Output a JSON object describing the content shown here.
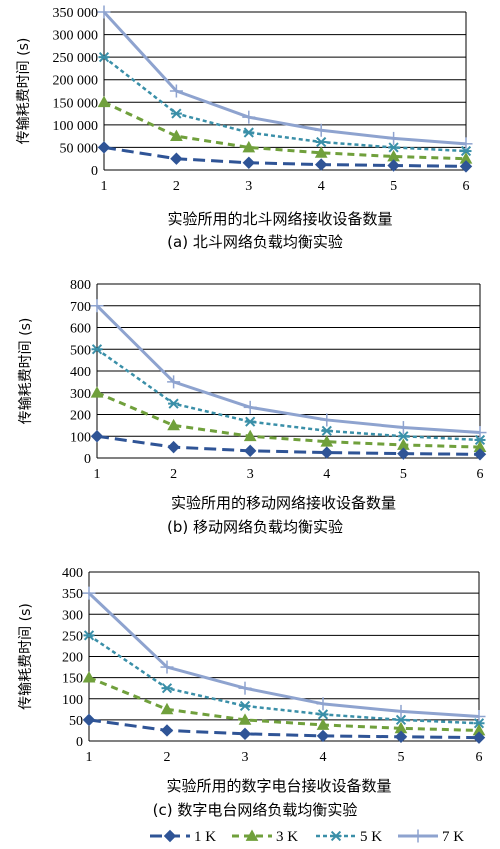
{
  "colors": {
    "series_1k": "#2f5496",
    "series_3k": "#70a03c",
    "series_5k": "#3a8fa8",
    "series_7k": "#8ea3cf",
    "grid": "#000000"
  },
  "legend": {
    "placement": "bottom",
    "entries": [
      "1 K",
      "3 K",
      "5 K",
      "7 K"
    ],
    "markers": [
      "diamond",
      "triangle",
      "asterisk",
      "plus"
    ]
  },
  "chart_data": [
    {
      "type": "line",
      "caption": "(a) 北斗网络负载均衡实验",
      "xlabel": "实验所用的北斗网络接收设备数量",
      "ylabel": "传输耗费时间 (s)",
      "x": [
        1,
        2,
        3,
        4,
        5,
        6
      ],
      "xlim": [
        1,
        6
      ],
      "ylim": [
        0,
        350000
      ],
      "yticks": [
        0,
        50000,
        100000,
        150000,
        200000,
        250000,
        300000,
        350000
      ],
      "ytick_labels": [
        "0",
        "50 000",
        "100 000",
        "150 000",
        "200 000",
        "250 000",
        "300 000",
        "350 000"
      ],
      "grid": "horizontal",
      "series": [
        {
          "name": "1 K",
          "values": [
            50000,
            25000,
            16000,
            12000,
            10000,
            8000
          ]
        },
        {
          "name": "3 K",
          "values": [
            150000,
            75000,
            50000,
            38000,
            30000,
            25000
          ]
        },
        {
          "name": "5 K",
          "values": [
            250000,
            125000,
            83000,
            62000,
            50000,
            42000
          ]
        },
        {
          "name": "7 K",
          "values": [
            350000,
            175000,
            117000,
            88000,
            70000,
            58000
          ]
        }
      ]
    },
    {
      "type": "line",
      "caption": "(b) 移动网络负载均衡实验",
      "xlabel": "实验所用的移动网络接收设备数量",
      "ylabel": "传输耗费时间 (s)",
      "x": [
        1,
        2,
        3,
        4,
        5,
        6
      ],
      "xlim": [
        1,
        6
      ],
      "ylim": [
        0,
        800
      ],
      "yticks": [
        0,
        100,
        200,
        300,
        400,
        500,
        600,
        700,
        800
      ],
      "ytick_labels": [
        "0",
        "100",
        "200",
        "300",
        "400",
        "500",
        "600",
        "700",
        "800"
      ],
      "grid": "horizontal",
      "series": [
        {
          "name": "1 K",
          "values": [
            100,
            50,
            33,
            25,
            20,
            17
          ]
        },
        {
          "name": "3 K",
          "values": [
            300,
            150,
            100,
            75,
            60,
            50
          ]
        },
        {
          "name": "5 K",
          "values": [
            500,
            250,
            167,
            125,
            100,
            83
          ]
        },
        {
          "name": "7 K",
          "values": [
            700,
            350,
            233,
            175,
            140,
            117
          ]
        }
      ]
    },
    {
      "type": "line",
      "caption": "(c) 数字电台网络负载均衡实验",
      "xlabel": "实验所用的数字电台接收设备数量",
      "ylabel": "传输耗费时间 (s)",
      "x": [
        1,
        2,
        3,
        4,
        5,
        6
      ],
      "xlim": [
        1,
        6
      ],
      "ylim": [
        0,
        400
      ],
      "yticks": [
        0,
        50,
        100,
        150,
        200,
        250,
        300,
        350,
        400
      ],
      "ytick_labels": [
        "0",
        "50",
        "100",
        "150",
        "200",
        "250",
        "300",
        "350",
        "400"
      ],
      "grid": "horizontal",
      "series": [
        {
          "name": "1 K",
          "values": [
            50,
            25,
            17,
            12,
            10,
            8
          ]
        },
        {
          "name": "3 K",
          "values": [
            150,
            75,
            50,
            38,
            30,
            25
          ]
        },
        {
          "name": "5 K",
          "values": [
            250,
            125,
            83,
            63,
            50,
            42
          ]
        },
        {
          "name": "7 K",
          "values": [
            350,
            175,
            125,
            88,
            70,
            58
          ]
        }
      ]
    }
  ]
}
